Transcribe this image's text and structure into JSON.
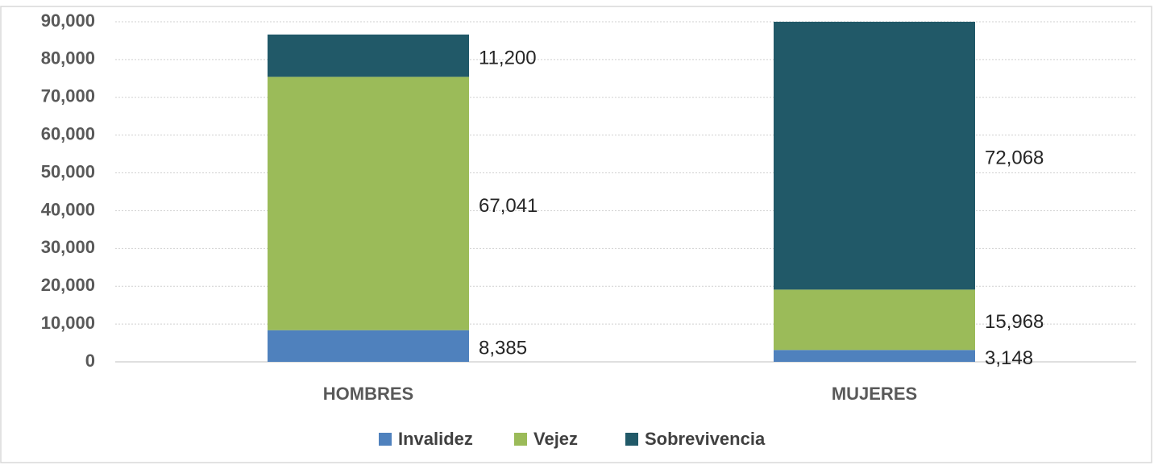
{
  "chart_data": {
    "type": "stacked_bar",
    "categories": [
      "HOMBRES",
      "MUJERES"
    ],
    "series": [
      {
        "name": "Invalidez",
        "color": "#4f81bd",
        "values": [
          8385,
          3148
        ],
        "value_labels": [
          "8,385",
          "3,148"
        ]
      },
      {
        "name": "Vejez",
        "color": "#9bbb59",
        "values": [
          67041,
          15968
        ],
        "value_labels": [
          "67,041",
          "15,968"
        ]
      },
      {
        "name": "Sobrevivencia",
        "color": "#215968",
        "values": [
          11200,
          72068
        ],
        "value_labels": [
          "11,200",
          "72,068"
        ]
      }
    ],
    "ylim": [
      0,
      90000
    ],
    "yticks": [
      0,
      {
        "value": 10000,
        "label": "10,000"
      },
      {
        "value": 20000,
        "label": "20,000"
      },
      {
        "value": 30000,
        "label": "30,000"
      },
      {
        "value": 40000,
        "label": "40,000"
      },
      {
        "value": 50000,
        "label": "50,000"
      },
      {
        "value": 60000,
        "label": "60,000"
      },
      {
        "value": 70000,
        "label": "70,000"
      },
      {
        "value": 80000,
        "label": "80,000"
      },
      {
        "value": 90000,
        "label": "90,000"
      }
    ],
    "grid": true,
    "legend": "bottom"
  }
}
